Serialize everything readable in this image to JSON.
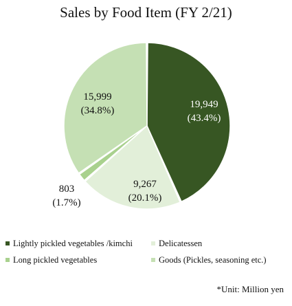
{
  "chart_data": {
    "type": "pie",
    "title": "Sales by Food Item (FY 2/21)",
    "slices": [
      {
        "name": "Lightly pickled vegetables /kimchi",
        "value": 19949,
        "value_label": "19,949",
        "percent_label": "(43.4%)",
        "color": "#375623"
      },
      {
        "name": "Delicatessen",
        "value": 9267,
        "value_label": "9,267",
        "percent_label": "(20.1%)",
        "color": "#e2efd9"
      },
      {
        "name": "Long pickled vegetables",
        "value": 803,
        "value_label": "803",
        "percent_label": "(1.7%)",
        "color": "#a9d18e"
      },
      {
        "name": "Goods (Pickles, seasoning etc.)",
        "value": 15999,
        "value_label": "15,999",
        "percent_label": "(34.8%)",
        "color": "#c5e0b4"
      }
    ],
    "label_colors": [
      "#ffffff",
      "#111111",
      "#111111",
      "#111111"
    ],
    "legend_placement": "bottom",
    "note": "*Unit: Million yen"
  }
}
